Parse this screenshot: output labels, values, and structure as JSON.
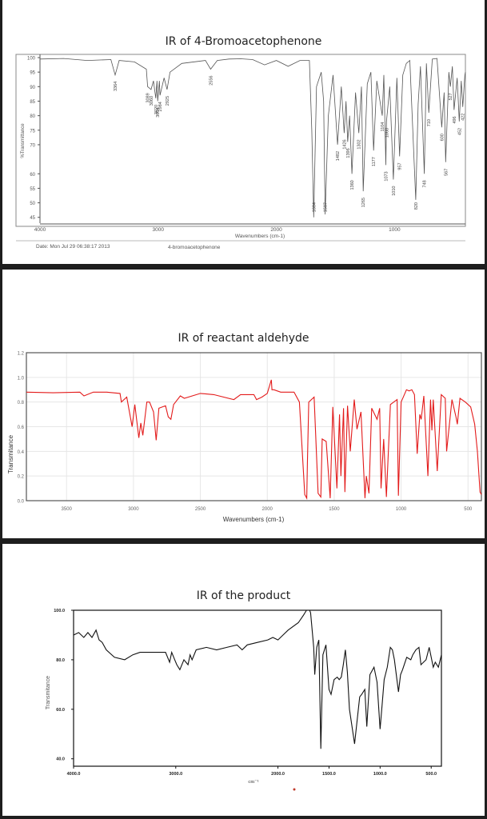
{
  "panels": [
    {
      "title": "IR of 4-Bromoacetophenone",
      "footer": {
        "date": "Date: Mon Jul 29 06:38:17 2013",
        "sample": "4-bromoacetophenone"
      }
    },
    {
      "title": "IR of reactant aldehyde"
    },
    {
      "title": "IR of the product"
    }
  ],
  "colors": {
    "panel_bg": "#ffffff",
    "divider": "#1e1e1e",
    "spectrum1": "#555555",
    "spectrum2": "#e31b1b",
    "spectrum3": "#111111",
    "grid": "#e6e6e6",
    "marker_dot": "#c0392b"
  },
  "chart_data": [
    {
      "type": "line",
      "title": "IR of 4-Bromoacetophenone",
      "xlabel": "Wavenumbers (cm-1)",
      "ylabel": "%Transmittance",
      "x_ticks": [
        4000,
        3000,
        2000,
        1000
      ],
      "y_ticks": [
        100,
        95,
        90,
        85,
        80,
        75,
        70,
        60,
        55,
        50,
        45
      ],
      "xlim": [
        4000,
        400
      ],
      "ylim": [
        43,
        100
      ],
      "grid": false,
      "peak_labels": [
        "3364",
        "3089",
        "3060",
        "3020",
        "3004",
        "2984",
        "2925",
        "2556",
        "1684",
        "1587",
        "1482",
        "1426",
        "1396",
        "1360",
        "1302",
        "1265",
        "1177",
        "1104",
        "1073",
        "1068",
        "1010",
        "957",
        "820",
        "748",
        "710",
        "600",
        "567",
        "527",
        "496",
        "452",
        "422"
      ],
      "series": [
        {
          "name": "4-bromoacetophenone",
          "x": [
            4000,
            3800,
            3600,
            3400,
            3364,
            3330,
            3200,
            3100,
            3089,
            3060,
            3040,
            3020,
            3010,
            3004,
            2990,
            2984,
            2950,
            2925,
            2900,
            2800,
            2600,
            2556,
            2500,
            2400,
            2300,
            2200,
            2100,
            2000,
            1900,
            1800,
            1750,
            1720,
            1700,
            1684,
            1660,
            1620,
            1600,
            1587,
            1560,
            1520,
            1482,
            1450,
            1426,
            1410,
            1396,
            1380,
            1360,
            1330,
            1302,
            1280,
            1265,
            1230,
            1200,
            1177,
            1150,
            1104,
            1090,
            1073,
            1068,
            1040,
            1010,
            980,
            957,
            930,
            900,
            870,
            820,
            800,
            780,
            748,
            730,
            710,
            680,
            640,
            600,
            580,
            567,
            540,
            527,
            510,
            496,
            470,
            452,
            435,
            422,
            405,
            400
          ],
          "y": [
            99.5,
            99.7,
            99,
            99.3,
            94,
            99,
            98.5,
            96,
            90,
            89,
            92,
            86,
            92,
            85,
            92,
            87,
            93,
            89,
            95,
            98,
            99,
            96,
            99,
            99.5,
            99.6,
            99.3,
            97.5,
            99,
            97,
            99,
            99,
            99,
            75,
            45,
            90,
            95,
            85,
            46,
            80,
            94,
            70,
            90,
            74,
            85,
            71,
            80,
            60,
            88,
            74,
            90,
            54,
            91,
            95,
            68,
            92,
            80,
            94,
            63,
            78,
            90,
            58,
            93,
            66,
            94,
            98,
            99,
            51,
            84,
            97,
            60,
            98,
            81,
            99.5,
            99.7,
            76,
            88,
            64,
            95,
            90,
            97,
            82,
            93,
            78,
            92,
            83,
            94,
            95
          ]
        }
      ]
    },
    {
      "type": "line",
      "title": "IR of reactant aldehyde",
      "xlabel": "Wavenumbers (cm-1)",
      "ylabel": "Transmitance",
      "x_ticks": [
        3500,
        3000,
        2500,
        2000,
        1500,
        1000,
        500
      ],
      "y_ticks": [
        0.0,
        0.2,
        0.4,
        0.6,
        0.8,
        1.0,
        1.2
      ],
      "xlim": [
        3800,
        400
      ],
      "ylim": [
        0,
        1.2
      ],
      "grid": true,
      "series": [
        {
          "name": "reactant aldehyde",
          "x": [
            3800,
            3600,
            3400,
            3370,
            3300,
            3200,
            3100,
            3090,
            3050,
            3010,
            2990,
            2960,
            2945,
            2930,
            2900,
            2880,
            2850,
            2830,
            2810,
            2760,
            2740,
            2720,
            2700,
            2650,
            2620,
            2500,
            2400,
            2250,
            2200,
            2100,
            2080,
            2040,
            2000,
            1970,
            1965,
            1950,
            1900,
            1800,
            1760,
            1720,
            1705,
            1700,
            1690,
            1650,
            1620,
            1600,
            1590,
            1560,
            1530,
            1510,
            1480,
            1460,
            1450,
            1430,
            1420,
            1400,
            1380,
            1350,
            1330,
            1300,
            1270,
            1260,
            1240,
            1220,
            1180,
            1160,
            1150,
            1130,
            1110,
            1080,
            1030,
            1020,
            1000,
            960,
            940,
            920,
            900,
            880,
            860,
            850,
            830,
            800,
            780,
            770,
            760,
            730,
            700,
            670,
            660,
            620,
            590,
            580,
            560,
            520,
            480,
            450,
            430,
            410,
            400
          ],
          "y": [
            0.88,
            0.875,
            0.88,
            0.85,
            0.88,
            0.88,
            0.87,
            0.8,
            0.84,
            0.6,
            0.78,
            0.51,
            0.63,
            0.53,
            0.8,
            0.8,
            0.72,
            0.49,
            0.75,
            0.77,
            0.68,
            0.66,
            0.78,
            0.85,
            0.83,
            0.87,
            0.86,
            0.82,
            0.86,
            0.86,
            0.82,
            0.84,
            0.87,
            0.98,
            0.9,
            0.9,
            0.88,
            0.88,
            0.8,
            0.05,
            0.02,
            0.3,
            0.8,
            0.84,
            0.06,
            0.03,
            0.5,
            0.48,
            0.02,
            0.76,
            0.1,
            0.7,
            0.2,
            0.75,
            0.07,
            0.77,
            0.4,
            0.82,
            0.58,
            0.72,
            0.02,
            0.2,
            0.06,
            0.75,
            0.66,
            0.75,
            0.1,
            0.5,
            0.03,
            0.78,
            0.82,
            0.04,
            0.8,
            0.9,
            0.89,
            0.9,
            0.86,
            0.38,
            0.7,
            0.66,
            0.85,
            0.2,
            0.82,
            0.57,
            0.82,
            0.24,
            0.86,
            0.83,
            0.4,
            0.82,
            0.68,
            0.62,
            0.83,
            0.8,
            0.76,
            0.62,
            0.4,
            0.07,
            0.05
          ]
        }
      ]
    },
    {
      "type": "line",
      "title": "IR of the product",
      "xlabel": "cm-1",
      "ylabel": "Transmitance",
      "x_ticks": [
        "4000.0",
        "3000.0",
        "2000.0",
        "1500.0",
        "1000.0",
        "500.0"
      ],
      "y_ticks": [
        "40.0",
        "60.0",
        "80.0",
        "100.0"
      ],
      "xlim": [
        4000,
        400
      ],
      "ylim": [
        37,
        100
      ],
      "grid": false,
      "series": [
        {
          "name": "product",
          "x": [
            4000,
            3950,
            3900,
            3860,
            3820,
            3780,
            3750,
            3720,
            3680,
            3600,
            3500,
            3420,
            3350,
            3200,
            3100,
            3060,
            3040,
            3010,
            2990,
            2960,
            2920,
            2880,
            2860,
            2840,
            2800,
            2700,
            2600,
            2500,
            2400,
            2350,
            2300,
            2200,
            2100,
            2050,
            2000,
            1950,
            1900,
            1800,
            1750,
            1720,
            1700,
            1690,
            1680,
            1650,
            1640,
            1620,
            1600,
            1580,
            1560,
            1530,
            1500,
            1480,
            1450,
            1420,
            1400,
            1380,
            1360,
            1340,
            1320,
            1300,
            1250,
            1200,
            1180,
            1150,
            1130,
            1100,
            1060,
            1030,
            1000,
            980,
            960,
            930,
            900,
            880,
            860,
            820,
            800,
            780,
            740,
            700,
            680,
            650,
            620,
            600,
            550,
            520,
            480,
            460,
            430,
            400
          ],
          "y": [
            90,
            91,
            89,
            91,
            89,
            92,
            88,
            87,
            84,
            81,
            80,
            82,
            83,
            83,
            83,
            79,
            83,
            80,
            78,
            76,
            80,
            78,
            82,
            80,
            84,
            85,
            84,
            85,
            86,
            84,
            86,
            87,
            88,
            89,
            88,
            90,
            92,
            95,
            98,
            100,
            100,
            100,
            99,
            85,
            74,
            85,
            88,
            44,
            82,
            86,
            68,
            66,
            72,
            73,
            72,
            73,
            78,
            84,
            75,
            60,
            46,
            65,
            66,
            68,
            53,
            74,
            77,
            71,
            52,
            62,
            72,
            77,
            85,
            84,
            80,
            67,
            74,
            76,
            81,
            80,
            82,
            84,
            85,
            78,
            80,
            85,
            77,
            79,
            77,
            82
          ]
        }
      ]
    }
  ]
}
